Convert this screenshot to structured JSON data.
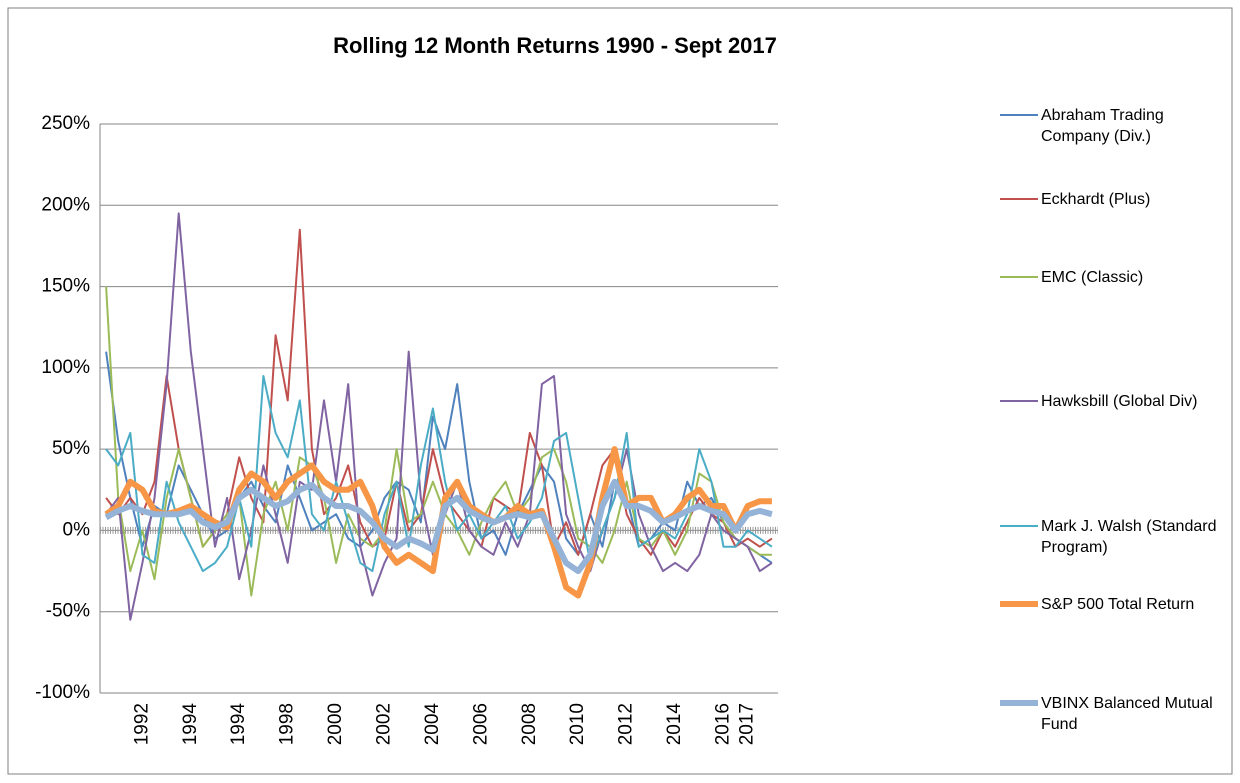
{
  "chart_data": {
    "type": "line",
    "title": "Rolling 12 Month Returns 1990 - Sept 2017",
    "categories": [
      null,
      null,
      null,
      "1992",
      null,
      null,
      null,
      "1994",
      null,
      null,
      null,
      "1994",
      null,
      null,
      null,
      "1998",
      null,
      null,
      null,
      "2000",
      null,
      null,
      null,
      "2002",
      null,
      null,
      null,
      "2004",
      null,
      null,
      null,
      "2006",
      null,
      null,
      null,
      "2008",
      null,
      null,
      null,
      "2010",
      null,
      null,
      null,
      "2012",
      null,
      null,
      null,
      "2014",
      null,
      null,
      null,
      "2016",
      null,
      "2017",
      null,
      null
    ],
    "ylim": [
      -100,
      250
    ],
    "yticks": [
      {
        "value": -100,
        "label": "-100%"
      },
      {
        "value": -50,
        "label": "-50%"
      },
      {
        "value": 0,
        "label": "0%"
      },
      {
        "value": 50,
        "label": "50%"
      },
      {
        "value": 100,
        "label": "100%"
      },
      {
        "value": 150,
        "label": "150%"
      },
      {
        "value": 200,
        "label": "200%"
      },
      {
        "value": 250,
        "label": "250%"
      }
    ],
    "grid": true,
    "legend": "right",
    "series": [
      {
        "name": "Abraham Trading Company (Div.)",
        "color": "#4f81bd",
        "width": 2,
        "values": [
          110,
          55,
          20,
          -10,
          15,
          10,
          40,
          25,
          10,
          -5,
          0,
          20,
          30,
          15,
          5,
          40,
          20,
          0,
          5,
          10,
          -5,
          -10,
          0,
          20,
          30,
          25,
          5,
          70,
          50,
          90,
          30,
          -5,
          0,
          -15,
          10,
          25,
          40,
          30,
          -5,
          -15,
          10,
          -10,
          30,
          20,
          -10,
          -5,
          5,
          0,
          30,
          15,
          20,
          5,
          -5,
          -10,
          -15,
          -20
        ]
      },
      {
        "name": "Eckhardt (Plus)",
        "color": "#c0504d",
        "width": 2,
        "values": [
          20,
          10,
          20,
          10,
          30,
          95,
          50,
          20,
          -10,
          0,
          10,
          45,
          20,
          5,
          120,
          80,
          185,
          50,
          10,
          20,
          40,
          5,
          -10,
          -5,
          30,
          0,
          10,
          50,
          20,
          10,
          0,
          -10,
          20,
          15,
          10,
          60,
          40,
          -10,
          5,
          -15,
          10,
          40,
          50,
          10,
          -5,
          -15,
          0,
          -10,
          5,
          20,
          10,
          5,
          -10,
          -5,
          -10,
          -5
        ]
      },
      {
        "name": "EMC (Classic)",
        "color": "#9bbb59",
        "width": 2,
        "values": [
          150,
          20,
          -25,
          0,
          -30,
          20,
          50,
          20,
          -10,
          0,
          10,
          20,
          -40,
          10,
          30,
          0,
          45,
          40,
          20,
          -20,
          10,
          -5,
          -10,
          0,
          50,
          5,
          10,
          30,
          10,
          0,
          -15,
          5,
          20,
          30,
          10,
          20,
          45,
          50,
          30,
          -5,
          -10,
          -20,
          0,
          30,
          -5,
          -10,
          0,
          -15,
          0,
          35,
          30,
          5,
          -5,
          -10,
          -15,
          -15
        ]
      },
      {
        "name": "Hawksbill (Global Div)",
        "color": "#8064a2",
        "width": 2,
        "values": [
          10,
          20,
          -55,
          -20,
          20,
          90,
          195,
          110,
          50,
          -10,
          20,
          -30,
          0,
          40,
          10,
          -20,
          30,
          25,
          80,
          30,
          90,
          -10,
          -40,
          -20,
          -5,
          110,
          20,
          -15,
          10,
          30,
          0,
          -10,
          -15,
          5,
          -10,
          10,
          90,
          95,
          10,
          -10,
          -25,
          0,
          20,
          50,
          10,
          -10,
          -25,
          -20,
          -25,
          -15,
          10,
          0,
          -5,
          -10,
          -25,
          -20
        ]
      },
      {
        "name": "Mark J. Walsh (Standard Program)",
        "color": "#4bacc6",
        "width": 2,
        "values": [
          50,
          40,
          60,
          -15,
          -20,
          30,
          5,
          -10,
          -25,
          -20,
          -10,
          20,
          -10,
          95,
          60,
          45,
          80,
          10,
          0,
          30,
          5,
          -20,
          -25,
          10,
          30,
          -10,
          40,
          75,
          30,
          0,
          10,
          -5,
          5,
          15,
          -5,
          5,
          20,
          55,
          60,
          20,
          -20,
          0,
          20,
          60,
          -10,
          -5,
          0,
          -5,
          10,
          50,
          30,
          -10,
          -10,
          0,
          -5,
          -10
        ]
      },
      {
        "name": "S&P 500 Total Return",
        "color": "#f79646",
        "width": 6,
        "values": [
          10,
          15,
          30,
          25,
          12,
          10,
          12,
          15,
          10,
          5,
          2,
          25,
          35,
          30,
          20,
          30,
          35,
          40,
          30,
          25,
          25,
          30,
          15,
          -10,
          -20,
          -15,
          -20,
          -25,
          20,
          30,
          15,
          10,
          5,
          8,
          15,
          10,
          12,
          -10,
          -35,
          -40,
          -20,
          20,
          50,
          15,
          20,
          20,
          5,
          10,
          20,
          25,
          15,
          15,
          0,
          15,
          18,
          18
        ]
      },
      {
        "name": "VBINX Balanced Mutual Fund",
        "color": "#95b3d7",
        "width": 6,
        "values": [
          8,
          12,
          15,
          12,
          10,
          10,
          10,
          12,
          5,
          2,
          5,
          20,
          25,
          20,
          15,
          18,
          25,
          28,
          20,
          15,
          15,
          12,
          5,
          -5,
          -10,
          -5,
          -8,
          -12,
          15,
          20,
          12,
          8,
          5,
          8,
          10,
          8,
          10,
          -5,
          -20,
          -25,
          -15,
          15,
          30,
          15,
          15,
          12,
          5,
          8,
          12,
          15,
          12,
          10,
          0,
          10,
          12,
          10
        ]
      }
    ]
  }
}
